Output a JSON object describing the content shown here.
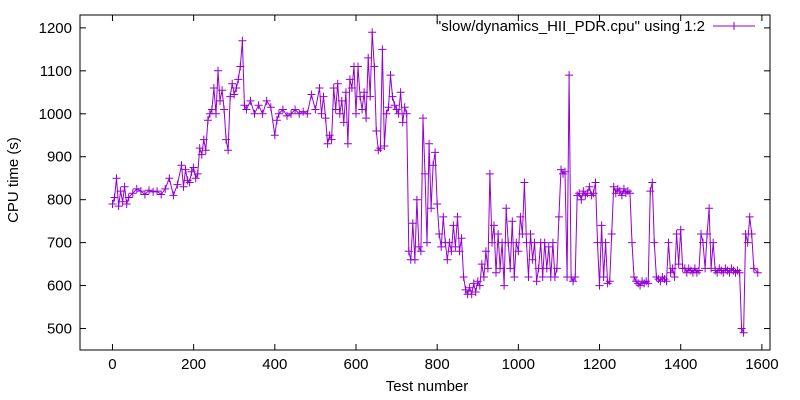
{
  "chart_data": {
    "type": "line",
    "title": "",
    "xlabel": "Test number",
    "ylabel": "CPU time (s)",
    "xlim": [
      -80,
      1620
    ],
    "ylim": [
      450,
      1230
    ],
    "x_ticks": [
      0,
      200,
      400,
      600,
      800,
      1000,
      1200,
      1400,
      1600
    ],
    "y_ticks": [
      500,
      600,
      700,
      800,
      900,
      1000,
      1100,
      1200
    ],
    "grid": false,
    "legend_position": "top-right",
    "series_color": "#9400d3",
    "marker": "plus",
    "series": [
      {
        "name": "\"slow/dynamics_HII_PDR.cpu\" using 1:2",
        "points": [
          [
            0,
            790
          ],
          [
            5,
            805
          ],
          [
            10,
            850
          ],
          [
            15,
            785
          ],
          [
            20,
            820
          ],
          [
            25,
            795
          ],
          [
            30,
            830
          ],
          [
            35,
            790
          ],
          [
            40,
            805
          ],
          [
            50,
            815
          ],
          [
            60,
            825
          ],
          [
            70,
            820
          ],
          [
            80,
            812
          ],
          [
            90,
            822
          ],
          [
            100,
            818
          ],
          [
            110,
            820
          ],
          [
            120,
            812
          ],
          [
            130,
            825
          ],
          [
            140,
            850
          ],
          [
            150,
            810
          ],
          [
            160,
            835
          ],
          [
            170,
            880
          ],
          [
            175,
            830
          ],
          [
            180,
            870
          ],
          [
            185,
            845
          ],
          [
            190,
            840
          ],
          [
            195,
            865
          ],
          [
            200,
            875
          ],
          [
            205,
            850
          ],
          [
            210,
            860
          ],
          [
            215,
            920
          ],
          [
            220,
            905
          ],
          [
            225,
            940
          ],
          [
            230,
            915
          ],
          [
            235,
            985
          ],
          [
            240,
            1000
          ],
          [
            245,
            1010
          ],
          [
            250,
            1060
          ],
          [
            255,
            1000
          ],
          [
            260,
            1100
          ],
          [
            265,
            1030
          ],
          [
            270,
            1055
          ],
          [
            275,
            1010
          ],
          [
            280,
            940
          ],
          [
            285,
            915
          ],
          [
            290,
            1040
          ],
          [
            295,
            1070
          ],
          [
            300,
            1045
          ],
          [
            305,
            1060
          ],
          [
            310,
            1080
          ],
          [
            315,
            1110
          ],
          [
            320,
            1170
          ],
          [
            325,
            1020
          ],
          [
            330,
            1010
          ],
          [
            340,
            1030
          ],
          [
            350,
            1000
          ],
          [
            360,
            1020
          ],
          [
            370,
            1000
          ],
          [
            380,
            1030
          ],
          [
            390,
            1015
          ],
          [
            400,
            950
          ],
          [
            405,
            985
          ],
          [
            410,
            1000
          ],
          [
            420,
            1010
          ],
          [
            430,
            995
          ],
          [
            440,
            1000
          ],
          [
            450,
            1010
          ],
          [
            460,
            1000
          ],
          [
            470,
            1005
          ],
          [
            480,
            1000
          ],
          [
            490,
            1045
          ],
          [
            500,
            1010
          ],
          [
            510,
            1060
          ],
          [
            515,
            1000
          ],
          [
            520,
            1040
          ],
          [
            525,
            990
          ],
          [
            530,
            930
          ],
          [
            535,
            950
          ],
          [
            540,
            940
          ],
          [
            545,
            1060
          ],
          [
            550,
            1010
          ],
          [
            555,
            1070
          ],
          [
            560,
            1000
          ],
          [
            565,
            1030
          ],
          [
            570,
            980
          ],
          [
            575,
            1050
          ],
          [
            580,
            930
          ],
          [
            585,
            1080
          ],
          [
            590,
            1060
          ],
          [
            595,
            1110
          ],
          [
            600,
            1000
          ],
          [
            605,
            1110
          ],
          [
            610,
            1040
          ],
          [
            615,
            1010
          ],
          [
            620,
            1050
          ],
          [
            625,
            990
          ],
          [
            630,
            1130
          ],
          [
            635,
            1040
          ],
          [
            640,
            1190
          ],
          [
            645,
            1110
          ],
          [
            650,
            960
          ],
          [
            655,
            915
          ],
          [
            660,
            920
          ],
          [
            665,
            1150
          ],
          [
            670,
            925
          ],
          [
            675,
            1000
          ],
          [
            680,
            1015
          ],
          [
            685,
            1090
          ],
          [
            690,
            1040
          ],
          [
            695,
            1020
          ],
          [
            700,
            1010
          ],
          [
            705,
            1000
          ],
          [
            710,
            1050
          ],
          [
            715,
            980
          ],
          [
            720,
            1015
          ],
          [
            725,
            1000
          ],
          [
            730,
            680
          ],
          [
            735,
            660
          ],
          [
            740,
            745
          ],
          [
            745,
            660
          ],
          [
            750,
            800
          ],
          [
            755,
            690
          ],
          [
            760,
            680
          ],
          [
            765,
            990
          ],
          [
            770,
            860
          ],
          [
            775,
            700
          ],
          [
            780,
            930
          ],
          [
            785,
            780
          ],
          [
            790,
            880
          ],
          [
            795,
            910
          ],
          [
            800,
            790
          ],
          [
            805,
            720
          ],
          [
            810,
            690
          ],
          [
            815,
            760
          ],
          [
            820,
            700
          ],
          [
            825,
            660
          ],
          [
            830,
            700
          ],
          [
            835,
            680
          ],
          [
            840,
            740
          ],
          [
            845,
            690
          ],
          [
            850,
            760
          ],
          [
            855,
            680
          ],
          [
            860,
            710
          ],
          [
            865,
            620
          ],
          [
            870,
            590
          ],
          [
            875,
            580
          ],
          [
            880,
            595
          ],
          [
            885,
            580
          ],
          [
            890,
            605
          ],
          [
            895,
            585
          ],
          [
            900,
            610
          ],
          [
            905,
            600
          ],
          [
            910,
            650
          ],
          [
            915,
            620
          ],
          [
            920,
            680
          ],
          [
            925,
            640
          ],
          [
            930,
            860
          ],
          [
            935,
            700
          ],
          [
            940,
            740
          ],
          [
            945,
            630
          ],
          [
            950,
            720
          ],
          [
            955,
            640
          ],
          [
            960,
            700
          ],
          [
            965,
            600
          ],
          [
            970,
            780
          ],
          [
            975,
            700
          ],
          [
            980,
            640
          ],
          [
            985,
            750
          ],
          [
            990,
            620
          ],
          [
            995,
            700
          ],
          [
            1000,
            680
          ],
          [
            1005,
            760
          ],
          [
            1010,
            720
          ],
          [
            1015,
            840
          ],
          [
            1020,
            700
          ],
          [
            1025,
            620
          ],
          [
            1030,
            720
          ],
          [
            1035,
            660
          ],
          [
            1040,
            700
          ],
          [
            1045,
            610
          ],
          [
            1050,
            640
          ],
          [
            1055,
            700
          ],
          [
            1060,
            620
          ],
          [
            1065,
            700
          ],
          [
            1070,
            640
          ],
          [
            1075,
            690
          ],
          [
            1080,
            620
          ],
          [
            1085,
            700
          ],
          [
            1090,
            620
          ],
          [
            1095,
            640
          ],
          [
            1100,
            760
          ],
          [
            1105,
            870
          ],
          [
            1110,
            860
          ],
          [
            1115,
            865
          ],
          [
            1120,
            620
          ],
          [
            1125,
            1090
          ],
          [
            1130,
            620
          ],
          [
            1135,
            610
          ],
          [
            1140,
            620
          ],
          [
            1145,
            810
          ],
          [
            1150,
            815
          ],
          [
            1155,
            800
          ],
          [
            1160,
            820
          ],
          [
            1165,
            810
          ],
          [
            1170,
            815
          ],
          [
            1175,
            830
          ],
          [
            1180,
            810
          ],
          [
            1185,
            815
          ],
          [
            1190,
            840
          ],
          [
            1195,
            700
          ],
          [
            1200,
            600
          ],
          [
            1205,
            740
          ],
          [
            1210,
            620
          ],
          [
            1215,
            700
          ],
          [
            1220,
            605
          ],
          [
            1225,
            610
          ],
          [
            1230,
            720
          ],
          [
            1235,
            830
          ],
          [
            1240,
            815
          ],
          [
            1245,
            825
          ],
          [
            1250,
            820
          ],
          [
            1255,
            810
          ],
          [
            1260,
            825
          ],
          [
            1265,
            815
          ],
          [
            1270,
            820
          ],
          [
            1275,
            815
          ],
          [
            1280,
            700
          ],
          [
            1285,
            620
          ],
          [
            1290,
            610
          ],
          [
            1295,
            605
          ],
          [
            1300,
            600
          ],
          [
            1305,
            610
          ],
          [
            1310,
            605
          ],
          [
            1315,
            610
          ],
          [
            1320,
            605
          ],
          [
            1325,
            820
          ],
          [
            1330,
            840
          ],
          [
            1335,
            700
          ],
          [
            1340,
            620
          ],
          [
            1345,
            615
          ],
          [
            1350,
            610
          ],
          [
            1355,
            620
          ],
          [
            1360,
            615
          ],
          [
            1365,
            610
          ],
          [
            1370,
            700
          ],
          [
            1375,
            630
          ],
          [
            1380,
            640
          ],
          [
            1385,
            620
          ],
          [
            1390,
            720
          ],
          [
            1395,
            650
          ],
          [
            1400,
            730
          ],
          [
            1405,
            640
          ],
          [
            1410,
            640
          ],
          [
            1415,
            630
          ],
          [
            1420,
            640
          ],
          [
            1425,
            635
          ],
          [
            1430,
            630
          ],
          [
            1435,
            640
          ],
          [
            1440,
            630
          ],
          [
            1445,
            635
          ],
          [
            1450,
            720
          ],
          [
            1455,
            700
          ],
          [
            1460,
            640
          ],
          [
            1465,
            720
          ],
          [
            1470,
            780
          ],
          [
            1475,
            640
          ],
          [
            1480,
            700
          ],
          [
            1485,
            635
          ],
          [
            1490,
            630
          ],
          [
            1495,
            640
          ],
          [
            1500,
            635
          ],
          [
            1505,
            630
          ],
          [
            1510,
            640
          ],
          [
            1515,
            635
          ],
          [
            1520,
            630
          ],
          [
            1525,
            640
          ],
          [
            1530,
            635
          ],
          [
            1535,
            630
          ],
          [
            1540,
            635
          ],
          [
            1545,
            630
          ],
          [
            1550,
            500
          ],
          [
            1555,
            490
          ],
          [
            1560,
            720
          ],
          [
            1565,
            700
          ],
          [
            1570,
            760
          ],
          [
            1575,
            720
          ],
          [
            1580,
            640
          ],
          [
            1590,
            630
          ]
        ]
      }
    ]
  }
}
